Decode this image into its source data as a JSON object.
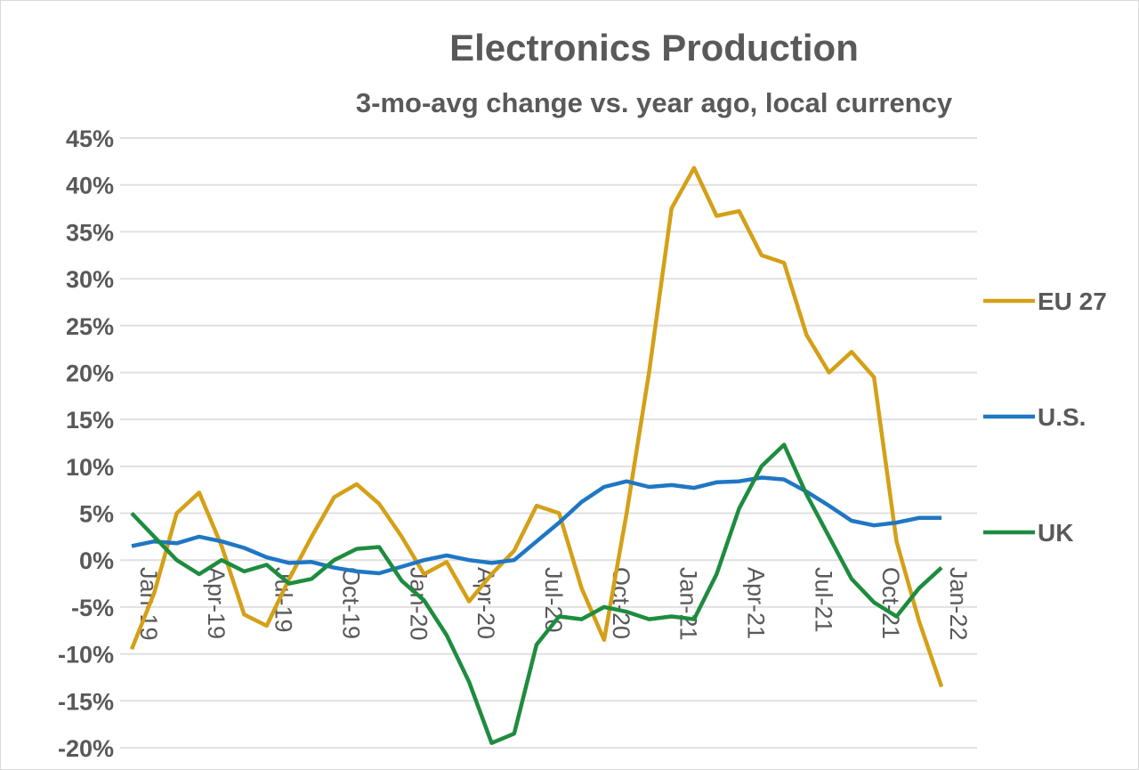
{
  "chart_data": {
    "type": "line",
    "title": "Electronics Production",
    "subtitle": "3-mo-avg change vs. year ago, local currency",
    "xlabel": "",
    "ylabel": "",
    "ylim": [
      -20,
      45
    ],
    "y_ticks": [
      "45%",
      "40%",
      "35%",
      "30%",
      "25%",
      "20%",
      "15%",
      "10%",
      "5%",
      "0%",
      "-5%",
      "-10%",
      "-15%",
      "-20%"
    ],
    "y_tick_values": [
      45,
      40,
      35,
      30,
      25,
      20,
      15,
      10,
      5,
      0,
      -5,
      -10,
      -15,
      -20
    ],
    "x_tick_labels": [
      "Jan-19",
      "Apr-19",
      "Jul-19",
      "Oct-19",
      "Jan-20",
      "Apr-20",
      "Jul-20",
      "Oct-20",
      "Jan-21",
      "Apr-21",
      "Jul-21",
      "Oct-21",
      "Jan-22"
    ],
    "x_tick_every_months": 3,
    "months_count": 37,
    "grid": true,
    "legend_position": "right",
    "series": [
      {
        "name": "EU 27",
        "color": "#d4a017",
        "values": [
          -9.5,
          -3.5,
          5,
          7.2,
          1.5,
          -5.8,
          -7,
          -2,
          2.5,
          6.7,
          8.1,
          6,
          2.5,
          -1.5,
          -0.2,
          -4.4,
          -1.5,
          1,
          5.8,
          5,
          -3,
          -8.5,
          5,
          20,
          37.5,
          41.8,
          36.7,
          37.2,
          32.5,
          31.7,
          24,
          20,
          22.2,
          19.5,
          2,
          -6.5,
          -13.5
        ]
      },
      {
        "name": "U.S.",
        "color": "#1f77c4",
        "values": [
          1.5,
          2,
          1.8,
          2.5,
          2,
          1.3,
          0.3,
          -0.3,
          -0.2,
          -0.8,
          -1.2,
          -1.4,
          -0.7,
          0,
          0.5,
          0,
          -0.3,
          0,
          2,
          4,
          6.2,
          7.8,
          8.4,
          7.8,
          8,
          7.7,
          8.3,
          8.4,
          8.8,
          8.6,
          7.3,
          5.8,
          4.2,
          3.7,
          4,
          4.5,
          4.5
        ]
      },
      {
        "name": "UK",
        "color": "#1e8c3e",
        "values": [
          5,
          2.5,
          0,
          -1.5,
          0,
          -1.2,
          -0.5,
          -2.5,
          -2,
          0,
          1.2,
          1.4,
          -2.2,
          -4.3,
          -8,
          -13,
          -19.5,
          -18.5,
          -9,
          -6,
          -6.3,
          -5,
          -5.5,
          -6.3,
          -6,
          -6.3,
          -1.5,
          5.5,
          10,
          12.3,
          7,
          2.5,
          -2,
          -4.5,
          -6,
          -3,
          -0.8
        ]
      }
    ]
  }
}
